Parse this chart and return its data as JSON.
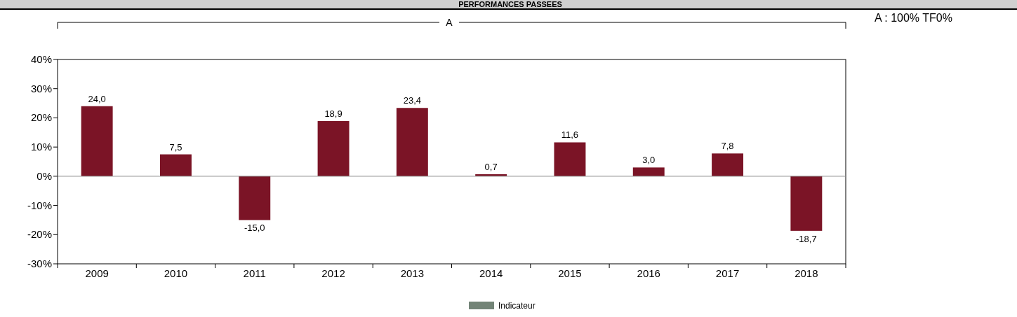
{
  "chart_data": {
    "type": "bar",
    "title": "PERFORMANCES PASSEES",
    "categories": [
      "2009",
      "2010",
      "2011",
      "2012",
      "2013",
      "2014",
      "2015",
      "2016",
      "2017",
      "2018"
    ],
    "series": [
      {
        "color": "#7b1426",
        "values": [
          24.0,
          7.5,
          -15.0,
          18.9,
          23.4,
          0.7,
          11.6,
          3.0,
          7.8,
          -18.7
        ],
        "value_labels": [
          "24,0",
          "7,5",
          "-15,0",
          "18,9",
          "23,4",
          "0,7",
          "11,6",
          "3,0",
          "7,8",
          "-18,7"
        ]
      },
      {
        "name": "Indicateur",
        "color": "#738477",
        "values": [
          null,
          null,
          null,
          null,
          null,
          null,
          null,
          null,
          null,
          null
        ]
      }
    ],
    "ylim": [
      -30,
      40
    ],
    "yticks": [
      {
        "value": -30,
        "label": "-30%"
      },
      {
        "value": -20,
        "label": "-20%"
      },
      {
        "value": -10,
        "label": "-10%"
      },
      {
        "value": 0,
        "label": "0%"
      },
      {
        "value": 10,
        "label": "10%"
      },
      {
        "value": 20,
        "label": "20%"
      },
      {
        "value": 30,
        "label": "30%"
      },
      {
        "value": 40,
        "label": "40%"
      }
    ],
    "annotations": [
      "A",
      "A : 100% TF0%"
    ],
    "legend": "bottom"
  }
}
